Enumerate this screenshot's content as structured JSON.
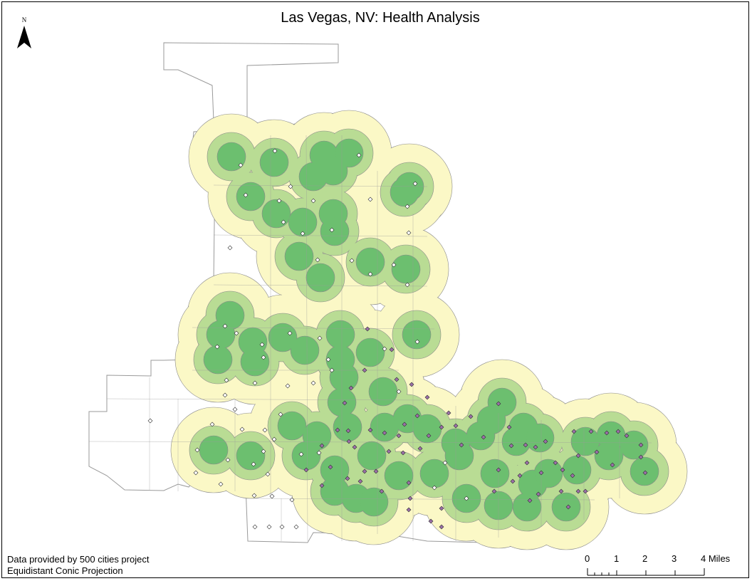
{
  "map": {
    "title": "Las Vegas, NV: Health Analysis",
    "north_label": "N",
    "credits": {
      "data_source": "Data provided by 500 cities project",
      "projection": "Equidistant Conic Projection"
    },
    "scale_bar": {
      "labels": [
        "0",
        "1",
        "2",
        "3",
        "4 Miles"
      ]
    },
    "colors": {
      "boundary": "#9a9a9a",
      "outer_buffer": "#fbf8c6",
      "middle_buffer": "#b9dc94",
      "inner_buffer": "#6cbf6f",
      "buffer_outline": "#8a8a8a",
      "point_white": "#ffffff",
      "point_purple": "#9a6fa8"
    }
  }
}
